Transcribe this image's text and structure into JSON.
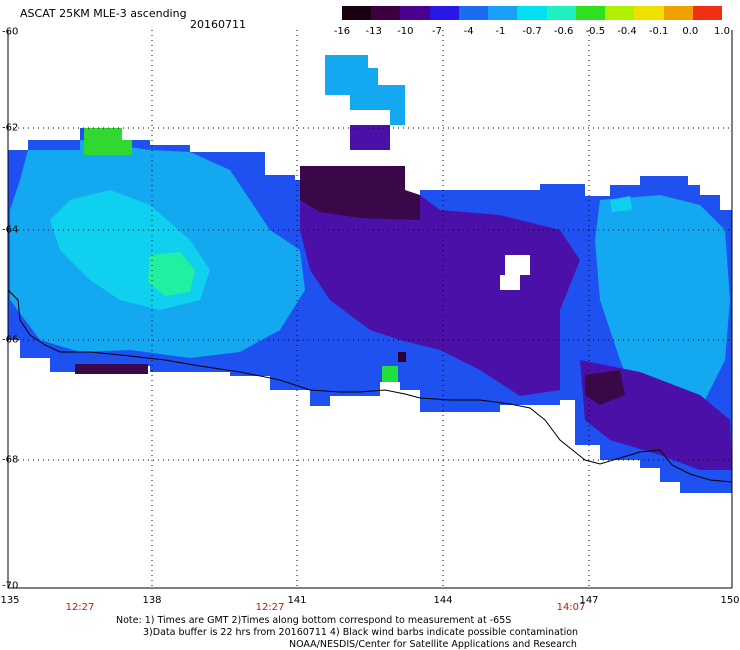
{
  "header": {
    "title": "ASCAT 25KM MLE-3 ascending",
    "date": "20160711"
  },
  "colorbar": {
    "labels": [
      "-16",
      "-13",
      "-10",
      "-7",
      "-4",
      "-1",
      "-0.7",
      "-0.6",
      "-0.5",
      "-0.4",
      "-0.1",
      "0.0",
      "1.0"
    ],
    "colors": [
      "#1a0010",
      "#3a0040",
      "#4a0090",
      "#2818e8",
      "#1a6cf0",
      "#1aa0f8",
      "#00e0f0",
      "#20f0c0",
      "#30e020",
      "#b0f000",
      "#f0e000",
      "#f0a000",
      "#f03010"
    ]
  },
  "axes": {
    "lat_labels": [
      "-60",
      "-62",
      "-64",
      "-66",
      "-68",
      "-70"
    ],
    "lon_labels": [
      "135",
      "138",
      "141",
      "144",
      "147",
      "150"
    ],
    "time_labels": [
      "12:27",
      "12:27",
      "14:07"
    ],
    "lat_range": [
      -70,
      -60
    ],
    "lon_range": [
      135,
      150
    ]
  },
  "footer": {
    "line1": "Note: 1) Times are GMT 2)Times along bottom correspond to measurement at -65S",
    "line2": "3)Data buffer is 22 hrs from 20160711 4) Black wind barbs indicate possible contamination",
    "line3": "NOAA/NESDIS/Center for Satellite Applications and Research"
  },
  "style": {
    "coastline_color": "#000000",
    "gridline_color": "#000000",
    "time_label_color": "#d01010"
  }
}
